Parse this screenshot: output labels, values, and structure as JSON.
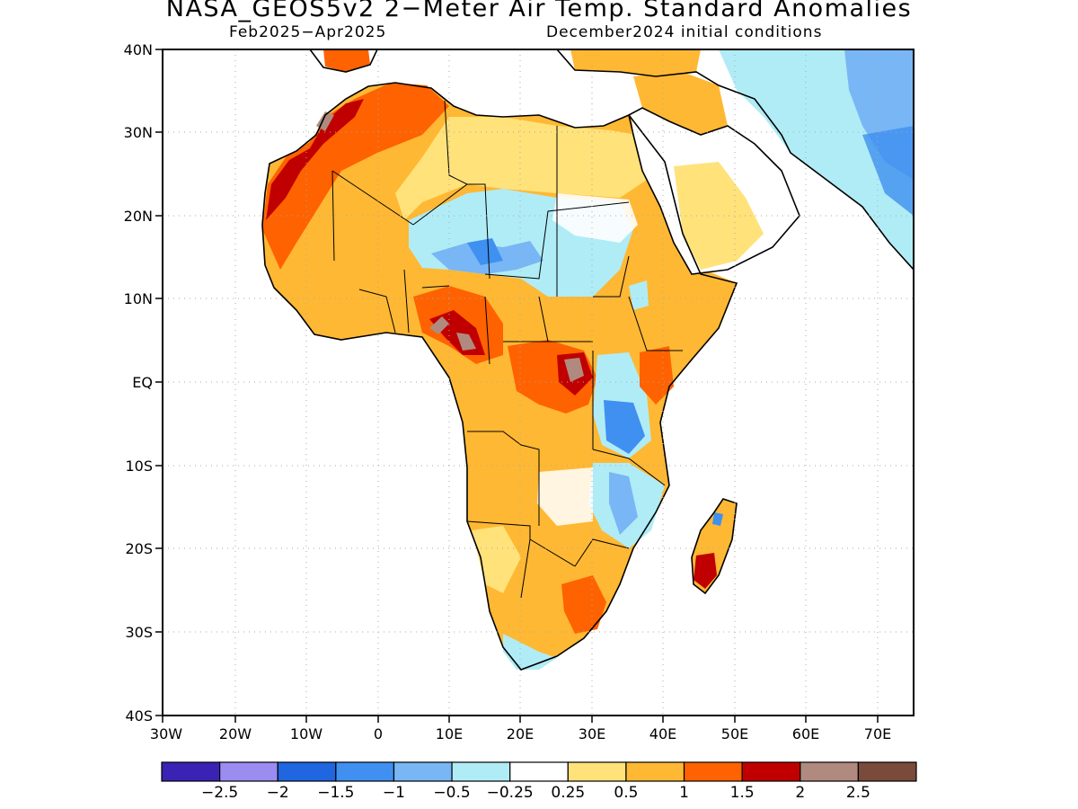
{
  "title": "NASA_GEOS5v2 2−Meter Air Temp. Standard Anomalies",
  "subtitle_left": "Feb2025−Apr2025",
  "subtitle_right": "December2024 initial conditions",
  "map": {
    "lon_range": [
      -30,
      75
    ],
    "lat_range": [
      -40,
      40
    ],
    "x_ticks": [
      "30W",
      "20W",
      "10W",
      "0",
      "10E",
      "20E",
      "30E",
      "40E",
      "50E",
      "60E",
      "70E"
    ],
    "y_ticks": [
      "40N",
      "30N",
      "20N",
      "10N",
      "EQ",
      "10S",
      "20S",
      "30S",
      "40S"
    ],
    "gridlines": "dotted"
  },
  "colorbar": {
    "colors": [
      "#3a22b5",
      "#9b8cf2",
      "#1f66e0",
      "#3f90f0",
      "#78b6f5",
      "#b0ecf6",
      "#ffffff",
      "#ffe27a",
      "#ffb833",
      "#ff6200",
      "#c00000",
      "#b08a7e",
      "#7a4a3a"
    ],
    "labels": [
      "−2.5",
      "−2",
      "−1.5",
      "−1",
      "−0.5",
      "−0.25",
      "0.25",
      "0.5",
      "1",
      "1.5",
      "2",
      "2.5"
    ]
  },
  "regions": {
    "northwest_africa": "warm",
    "sahel_west": "warm",
    "central_sahara": "cool",
    "gulf_of_guinea": "very-warm",
    "central_africa": "warm",
    "east_africa_lakes": "cool",
    "horn_of_africa": "warm",
    "southern_africa": "warm",
    "madagascar": "warm",
    "arabia": "mixed",
    "iran": "cool"
  }
}
